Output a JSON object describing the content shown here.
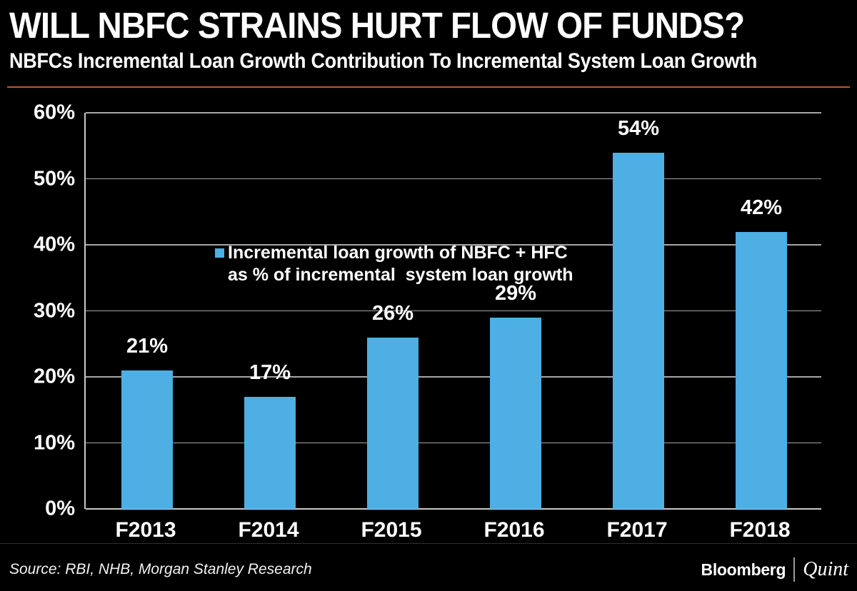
{
  "header": {
    "title": "WILL NBFC STRAINS HURT FLOW OF FUNDS?",
    "subtitle": "NBFCs Incremental Loan Growth Contribution To Incremental System Loan Growth",
    "divider_color": "#b25d28"
  },
  "chart_data": {
    "type": "bar",
    "categories": [
      "F2013",
      "F2014",
      "F2015",
      "F2016",
      "F2017",
      "F2018"
    ],
    "values": [
      21,
      17,
      26,
      29,
      54,
      42
    ],
    "value_labels": [
      "21%",
      "17%",
      "26%",
      "29%",
      "54%",
      "42%"
    ],
    "title": "",
    "xlabel": "",
    "ylabel": "",
    "ylim": [
      0,
      60
    ],
    "ytick_step": 10,
    "ytick_labels": [
      "0%",
      "10%",
      "20%",
      "30%",
      "40%",
      "50%",
      "60%"
    ],
    "grid": true,
    "legend_position": "top-left-inside",
    "legend_lines": [
      "Incremental loan growth of NBFC + HFC",
      "as % of incremental  system loan growth"
    ],
    "bar_color": "#4DAFE3",
    "gridline_color": "#a6a6a6",
    "background_color": "#000000",
    "label_color": "#ffffff"
  },
  "footer": {
    "source": "Source: RBI, NHB, Morgan Stanley Research",
    "brand": {
      "bloomberg": "Bloomberg",
      "separator": "|",
      "quint": "Quint"
    }
  }
}
